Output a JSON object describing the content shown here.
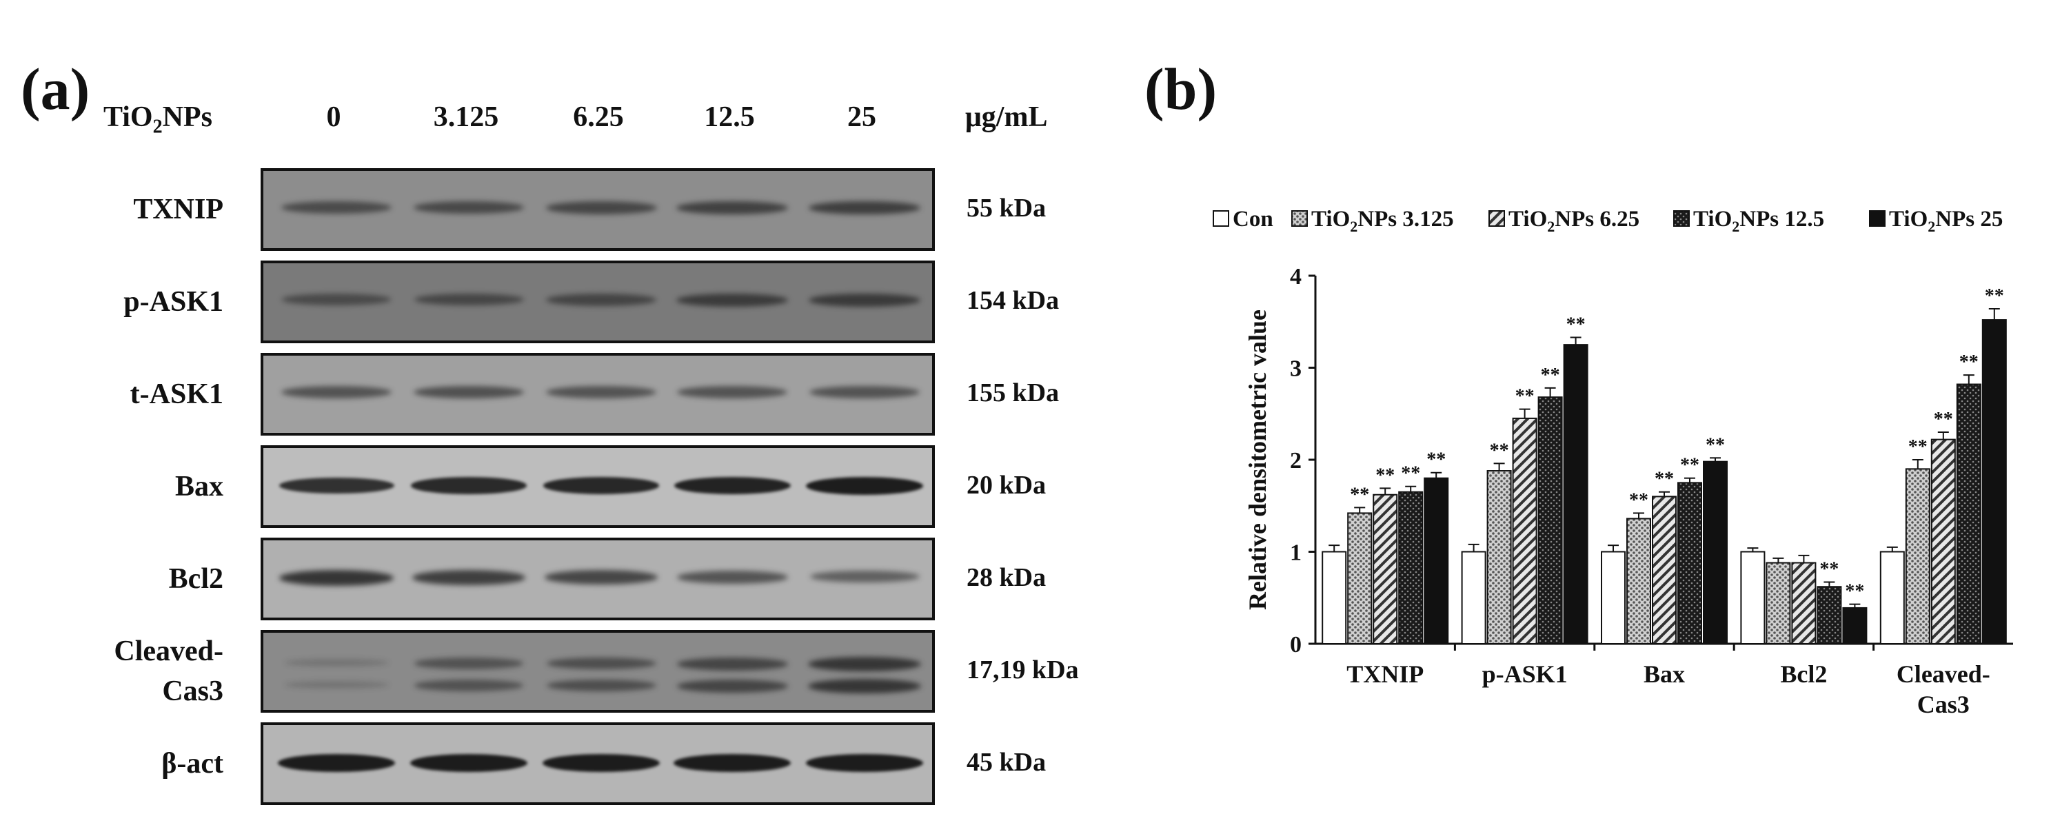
{
  "panel_a": {
    "label": "(a)",
    "header": {
      "treatment_prefix": "TiO",
      "treatment_sub": "2",
      "treatment_suffix": "NPs",
      "doses": [
        "0",
        "3.125",
        "6.25",
        "12.5",
        "25"
      ],
      "unit": "μg/mL"
    },
    "blots": [
      {
        "protein": "TXNIP",
        "kda": "55 kDa",
        "bg": "#8d8d8d",
        "band_intensity": [
          0.5,
          0.52,
          0.55,
          0.6,
          0.62
        ]
      },
      {
        "protein": "p-ASK1",
        "kda": "154 kDa",
        "bg": "#7a7a7a",
        "band_intensity": [
          0.4,
          0.45,
          0.48,
          0.58,
          0.6
        ]
      },
      {
        "protein": "t-ASK1",
        "kda": "155 kDa",
        "bg": "#a0a0a0",
        "band_intensity": [
          0.5,
          0.52,
          0.5,
          0.5,
          0.5
        ]
      },
      {
        "protein": "Bax",
        "kda": "20 kDa",
        "bg": "#bdbdbd",
        "band_intensity": [
          0.85,
          0.9,
          0.92,
          0.95,
          1.0
        ]
      },
      {
        "protein": "Bcl2",
        "kda": "28 kDa",
        "bg": "#b0b0b0",
        "band_intensity": [
          0.8,
          0.72,
          0.66,
          0.55,
          0.45
        ]
      },
      {
        "protein": "Cleaved-\nCas3",
        "kda": "17,19 kDa",
        "bg": "#8a8a8a",
        "band_intensity": [
          0.05,
          0.4,
          0.45,
          0.55,
          0.7
        ]
      },
      {
        "protein": "β-act",
        "kda": "45 kDa",
        "bg": "#b5b5b5",
        "band_intensity": [
          1.0,
          1.0,
          1.0,
          1.0,
          1.0
        ]
      }
    ]
  },
  "panel_b": {
    "label": "(b)"
  },
  "chart_data": {
    "type": "bar",
    "title": "",
    "xlabel": "",
    "ylabel": "Relative densitometric value",
    "ylim": [
      0,
      4
    ],
    "yticks": [
      "0",
      "1",
      "2",
      "3",
      "4"
    ],
    "categories": [
      "TXNIP",
      "p-ASK1",
      "Bax",
      "Bcl2",
      "Cleaved-\nCas3"
    ],
    "legend_position": "top",
    "series": [
      {
        "name": "Con",
        "pattern": "white",
        "values": [
          1.0,
          1.0,
          1.0,
          1.0,
          1.0
        ],
        "errors": [
          0.07,
          0.08,
          0.07,
          0.04,
          0.05
        ],
        "sig": [
          "",
          "",
          "",
          "",
          ""
        ]
      },
      {
        "name": "TiO2NPs 3.125",
        "pattern": "dots",
        "values": [
          1.42,
          1.88,
          1.36,
          0.88,
          1.9
        ],
        "errors": [
          0.06,
          0.08,
          0.06,
          0.05,
          0.1
        ],
        "sig": [
          "**",
          "**",
          "**",
          "",
          "**"
        ]
      },
      {
        "name": "TiO2NPs 6.25",
        "pattern": "hatch",
        "values": [
          1.62,
          2.45,
          1.6,
          0.88,
          2.22
        ],
        "errors": [
          0.07,
          0.1,
          0.05,
          0.08,
          0.08
        ],
        "sig": [
          "**",
          "**",
          "**",
          "",
          "**"
        ]
      },
      {
        "name": "TiO2NPs 12.5",
        "pattern": "dark",
        "values": [
          1.65,
          2.68,
          1.75,
          0.62,
          2.82
        ],
        "errors": [
          0.06,
          0.1,
          0.05,
          0.05,
          0.1
        ],
        "sig": [
          "**",
          "**",
          "**",
          "**",
          "**"
        ]
      },
      {
        "name": "TiO2NPs 25",
        "pattern": "black",
        "values": [
          1.8,
          3.25,
          1.98,
          0.39,
          3.52
        ],
        "errors": [
          0.06,
          0.08,
          0.04,
          0.04,
          0.12
        ],
        "sig": [
          "**",
          "**",
          "**",
          "**",
          "**"
        ]
      }
    ],
    "colors": {
      "axis": "#111111",
      "fill_white": "#ffffff",
      "fill_black": "#111111"
    }
  }
}
